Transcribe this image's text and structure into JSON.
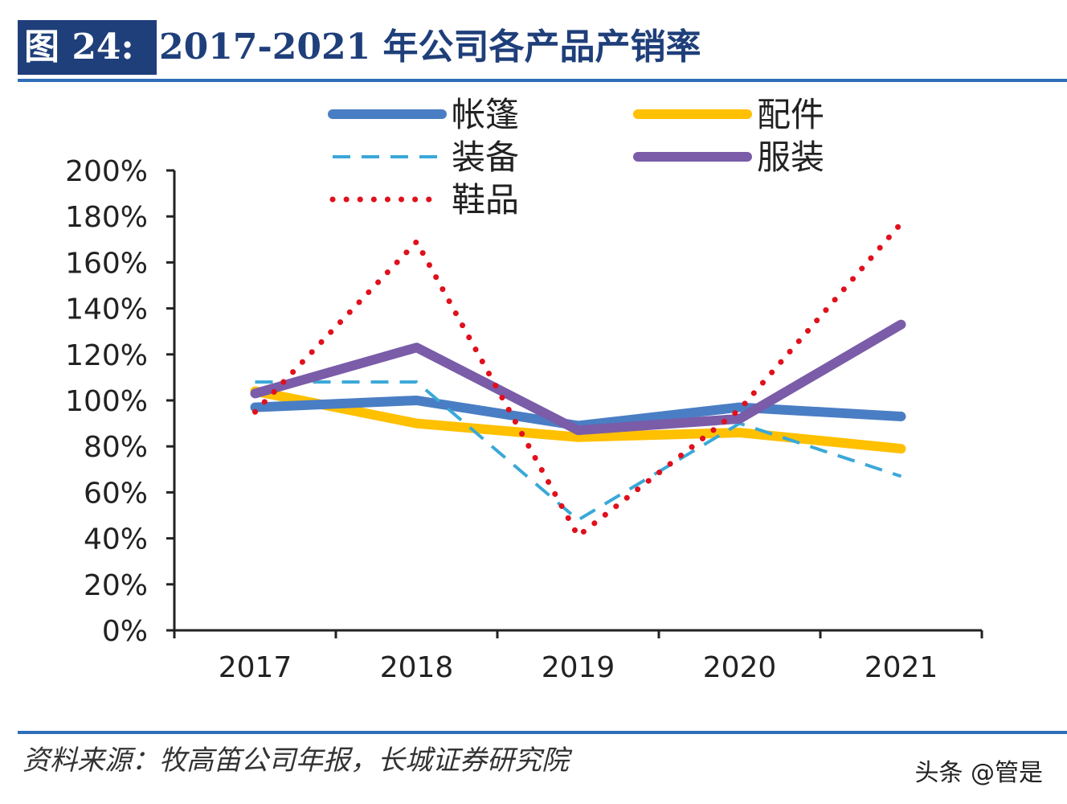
{
  "header": {
    "figure_label": "图 24:",
    "title": "2017-2021 年公司各产品产销率"
  },
  "footer": {
    "source": "资料来源：牧高笛公司年报，长城证券研究院",
    "watermark": "头条 @管是"
  },
  "chart_data": {
    "type": "line",
    "title": "2017-2021 年公司各产品产销率",
    "categories": [
      "2017",
      "2018",
      "2019",
      "2020",
      "2021"
    ],
    "ylim": [
      0,
      200
    ],
    "yticks": [
      "0%",
      "20%",
      "40%",
      "60%",
      "80%",
      "100%",
      "120%",
      "140%",
      "160%",
      "180%",
      "200%"
    ],
    "grid": false,
    "legend_placement": "top",
    "series": [
      {
        "name": "帐篷",
        "values": [
          97,
          100,
          89,
          97,
          93
        ],
        "color": "#4a7ec4",
        "style": "solid"
      },
      {
        "name": "配件",
        "values": [
          104,
          90,
          84,
          86,
          79
        ],
        "color": "#ffc000",
        "style": "solid"
      },
      {
        "name": "装备",
        "values": [
          108,
          108,
          48,
          90,
          67
        ],
        "color": "#3aa8d8",
        "style": "dashed"
      },
      {
        "name": "服装",
        "values": [
          103,
          123,
          87,
          92,
          133
        ],
        "color": "#7a5ca8",
        "style": "solid"
      },
      {
        "name": "鞋品",
        "values": [
          95,
          169,
          41,
          96,
          177
        ],
        "color": "#e0101c",
        "style": "dotted"
      }
    ]
  }
}
